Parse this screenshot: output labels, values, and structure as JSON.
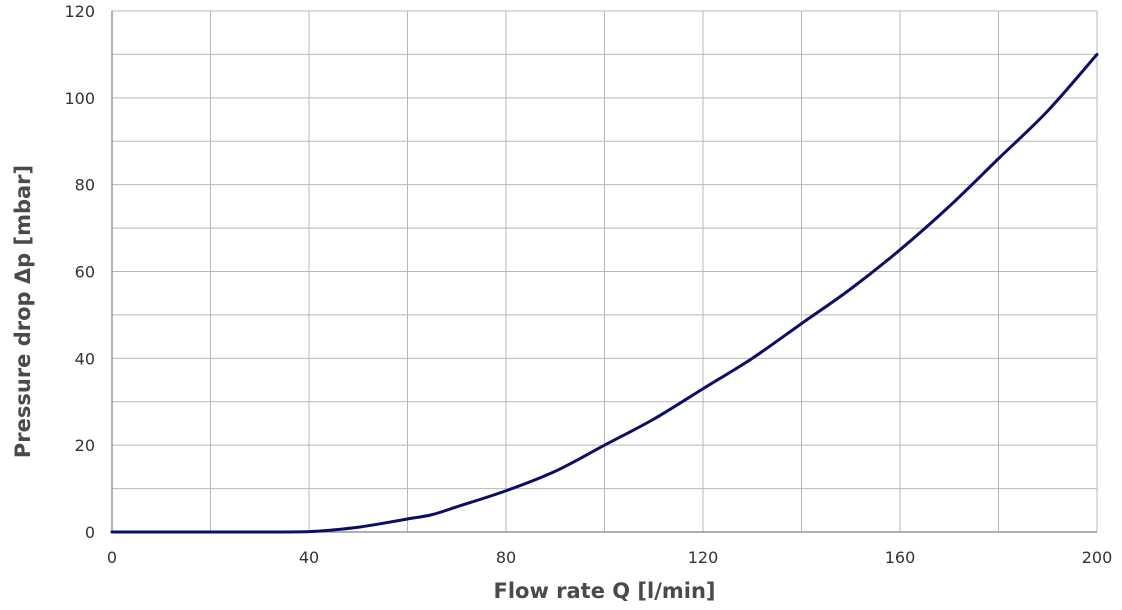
{
  "chart_data": {
    "type": "line",
    "title": "",
    "xlabel": "Flow rate Q [l/min]",
    "ylabel": "Pressure drop Δp [mbar]",
    "xlim": [
      0,
      200
    ],
    "ylim": [
      0,
      120
    ],
    "x_ticks": [
      0,
      40,
      80,
      120,
      160,
      200
    ],
    "y_ticks": [
      0,
      20,
      40,
      60,
      80,
      100,
      120
    ],
    "x_grid_step": 20,
    "y_grid_step": 10,
    "grid": true,
    "series": [
      {
        "color": "#0d0d66",
        "x": [
          0,
          10,
          20,
          30,
          40,
          45,
          50,
          55,
          60,
          65,
          70,
          80,
          90,
          100,
          110,
          120,
          130,
          140,
          150,
          160,
          170,
          180,
          190,
          200
        ],
        "y": [
          0,
          0,
          0,
          0,
          0.1,
          0.5,
          1.1,
          2,
          3,
          4,
          5.8,
          9.5,
          14,
          20,
          26,
          33,
          40,
          48,
          56,
          65,
          75,
          86,
          97,
          110
        ]
      }
    ]
  }
}
